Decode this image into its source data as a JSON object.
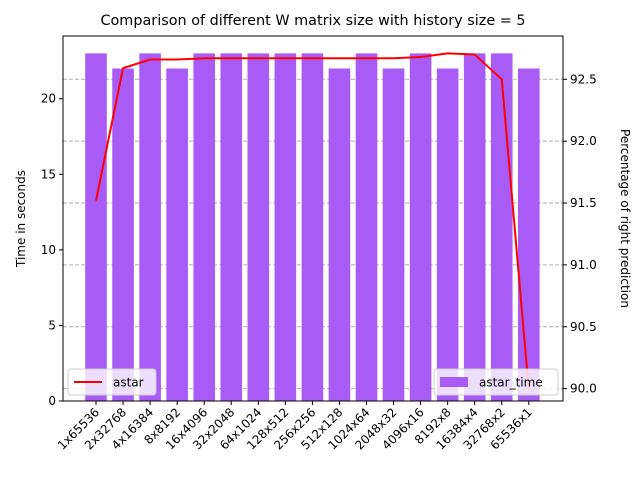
{
  "chart_data": {
    "type": "bar",
    "title": "Comparison of different W matrix size with history size = 5",
    "categories": [
      "1x65536",
      "2x32768",
      "4x16384",
      "8x8192",
      "16x4096",
      "32x2048",
      "64x1024",
      "128x512",
      "256x256",
      "512x128",
      "1024x64",
      "2048x32",
      "4096x16",
      "8192x8",
      "16384x4",
      "32768x2",
      "65536x1"
    ],
    "left_axis": {
      "label": "Time in seconds",
      "ylim": [
        0,
        24.15
      ],
      "ticks": [
        0,
        5,
        10,
        15,
        20
      ]
    },
    "right_axis": {
      "label": "Percentage of right prediction",
      "ylim": [
        89.9,
        92.85
      ],
      "ticks": [
        "90.0",
        "90.5",
        "91.0",
        "91.5",
        "92.0",
        "92.5"
      ]
    },
    "series": [
      {
        "name": "astar_time",
        "kind": "bar",
        "axis": "left",
        "color": "#a95cf5",
        "values": [
          23,
          22,
          23,
          22,
          23,
          23,
          23,
          23,
          23,
          22,
          23,
          22,
          23,
          22,
          23,
          23,
          22
        ]
      },
      {
        "name": "astar",
        "kind": "line",
        "axis": "right",
        "color": "#ff0000",
        "values": [
          91.52,
          92.59,
          92.66,
          92.66,
          92.67,
          92.67,
          92.67,
          92.67,
          92.67,
          92.67,
          92.67,
          92.67,
          92.68,
          92.71,
          92.7,
          92.5,
          89.99
        ]
      }
    ],
    "grid": "horizontal dashed (right axis)",
    "legends": {
      "line": "bottom-left",
      "bars": "bottom-right"
    }
  }
}
